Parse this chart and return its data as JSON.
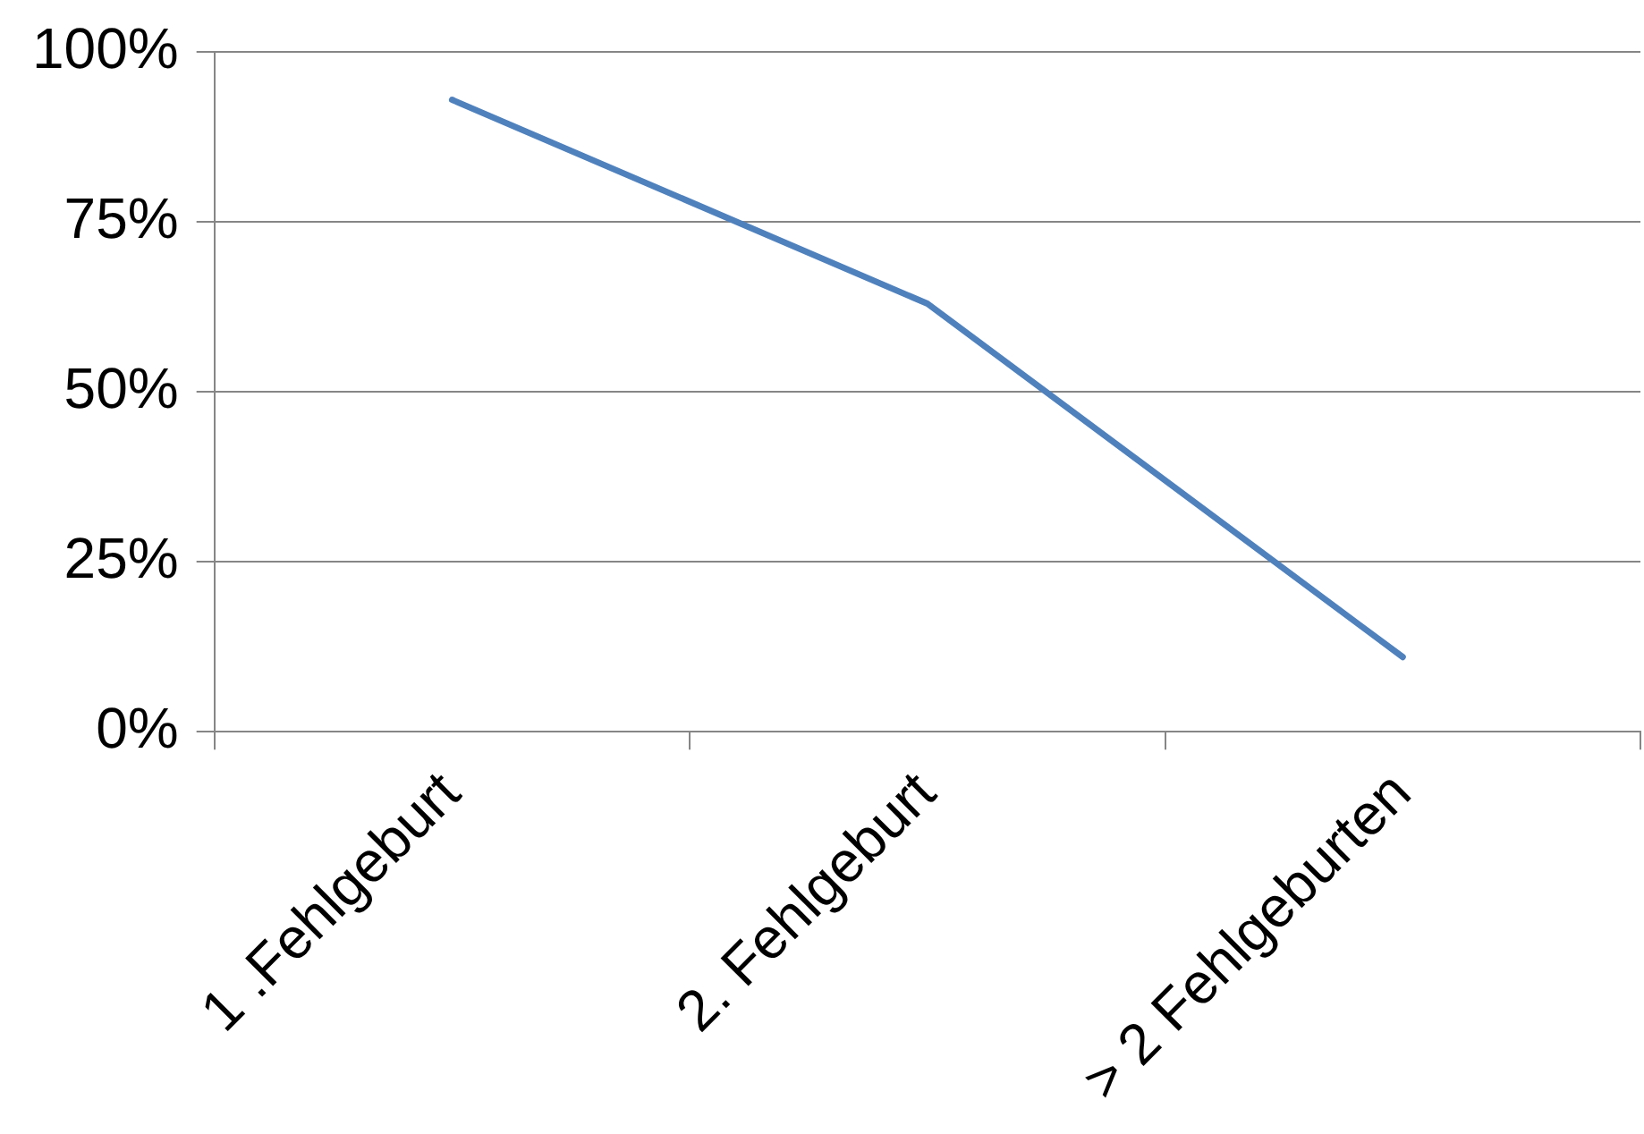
{
  "chart_data": {
    "type": "line",
    "categories": [
      "1 .Fehlgeburt",
      "2. Fehlgeburt",
      "> 2 Fehlgeburten"
    ],
    "series": [
      {
        "color": "#4f81bd",
        "values": [
          93,
          63,
          11
        ]
      }
    ],
    "ylim": [
      0,
      100
    ],
    "yticks": [
      {
        "value": 0,
        "label": "0%"
      },
      {
        "value": 25,
        "label": "25%"
      },
      {
        "value": 50,
        "label": "50%"
      },
      {
        "value": 75,
        "label": "75%"
      },
      {
        "value": 100,
        "label": "100%"
      }
    ],
    "grid": "y",
    "legend": false,
    "marker": "none",
    "line_style": "solid"
  }
}
